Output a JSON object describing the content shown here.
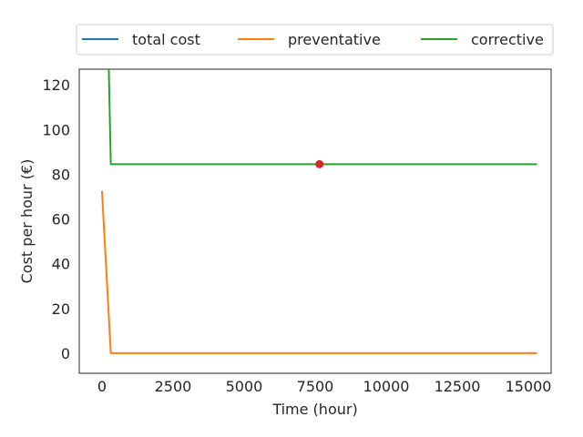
{
  "chart_data": {
    "type": "line",
    "xlabel": "Time (hour)",
    "ylabel": "Cost per hour (€)",
    "xlim": [
      -800,
      15800
    ],
    "ylim": [
      -9,
      127
    ],
    "xticks": [
      0,
      2500,
      5000,
      7500,
      10000,
      12500,
      15000
    ],
    "xtick_labels": [
      "0",
      "2500",
      "5000",
      "7500",
      "10000",
      "12500",
      "15000"
    ],
    "yticks": [
      0,
      20,
      40,
      60,
      80,
      100,
      120
    ],
    "ytick_labels": [
      "0",
      "20",
      "40",
      "60",
      "80",
      "100",
      "120"
    ],
    "grid": false,
    "legend_position": "top, above plot, 3 columns",
    "series": [
      {
        "name": "total cost",
        "color": "#1f77b4",
        "x": [],
        "y": []
      },
      {
        "name": "preventative",
        "color": "#ff7f0e",
        "x": [
          0,
          310,
          15300
        ],
        "y": [
          72.5,
          0,
          0
        ]
      },
      {
        "name": "corrective",
        "color": "#2ca02c",
        "x": [
          240,
          310,
          15300
        ],
        "y": [
          127,
          84.5,
          84.5
        ]
      }
    ],
    "markers": [
      {
        "x": 7650,
        "y": 84.5,
        "color": "#d62728"
      }
    ]
  }
}
